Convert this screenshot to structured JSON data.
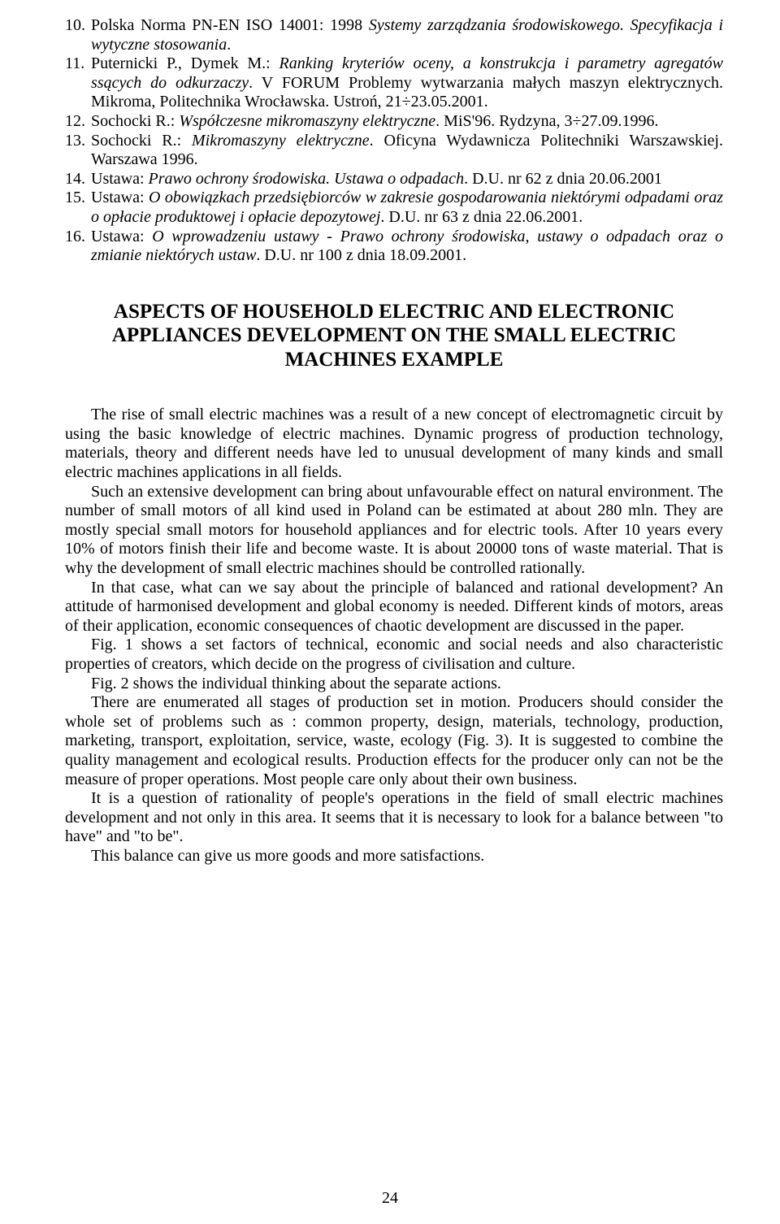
{
  "refs": [
    {
      "num": "10.",
      "html": "Polska Norma PN-EN ISO 14001: 1998 <span class='italic'>Systemy zarządzania środowiskowego. Specyfikacja i wytyczne stosowania</span>."
    },
    {
      "num": "11.",
      "html": "Puternicki P., Dymek M.: <span class='italic'>Ranking kryteriów oceny, a konstrukcja i parametry agregatów ssących do odkurzaczy</span>. V FORUM Problemy wytwarzania małych maszyn elektrycznych. Mikroma, Politechnika Wrocławska. Ustroń, 21÷23.05.2001."
    },
    {
      "num": "12.",
      "html": "Sochocki R.: <span class='italic'>Współczesne mikromaszyny elektryczne</span>. MiS'96. Rydzyna, 3÷27.09.1996."
    },
    {
      "num": "13.",
      "html": "Sochocki R.: <span class='italic'>Mikromaszyny elektryczne</span>. Oficyna Wydawnicza Politechniki Warszawskiej. Warszawa 1996."
    },
    {
      "num": "14.",
      "html": "Ustawa: <span class='italic'>Prawo ochrony środowiska. Ustawa o odpadach</span>. D.U. nr 62 z dnia 20.06.2001"
    },
    {
      "num": "15.",
      "html": "Ustawa: <span class='italic'>O obowiązkach przedsiębiorców w zakresie gospodarowania niektórymi odpadami oraz o opłacie produktowej i opłacie depozytowej</span>. D.U. nr 63 z dnia 22.06.2001."
    },
    {
      "num": "16.",
      "html": "Ustawa: <span class='italic'>O wprowadzeniu ustawy - Prawo ochrony środowiska, ustawy o odpadach oraz o zmianie niektórych ustaw</span>. D.U. nr 100 z dnia 18.09.2001."
    }
  ],
  "title": "ASPECTS OF HOUSEHOLD ELECTRIC AND ELECTRONIC APPLIANCES DEVELOPMENT ON THE SMALL ELECTRIC MACHINES EXAMPLE",
  "paragraphs": [
    "The rise of small electric machines was a result of a new concept of electromagnetic circuit by using the basic knowledge of electric machines. Dynamic progress of production technology, materials, theory and different needs have led to unusual development of many kinds and small electric machines applications in all fields.",
    "Such an extensive development can bring about unfavourable effect on natural environment. The number of small motors of all kind used in Poland can be estimated at about 280 mln. They are mostly special small motors for household appliances and for electric tools. After 10 years every 10% of motors finish their life and become waste. It is about 20000 tons of waste material. That is why the development of small electric machines should be controlled rationally.",
    "In that case, what can we say about the principle of balanced and rational development? An attitude of harmonised development and global economy is needed. Different kinds of motors, areas of their application, economic consequences of chaotic development are discussed in the paper.",
    "Fig. 1 shows a set factors of technical, economic and social needs and also characteristic properties of creators, which decide on the progress of civilisation and culture.",
    "Fig. 2 shows the individual thinking about the separate actions.",
    "There are enumerated all stages of production set in motion. Producers should consider the whole set of problems such as : common property, design, materials, technology, production, marketing, transport, exploitation, service, waste, ecology (Fig. 3). It is suggested to combine the quality management and ecological results. Production effects for the producer only can not be the measure of proper operations. Most people care only about their own business.",
    "It is a question of rationality of people's operations in the field of small electric machines development and not only in this area. It seems that it is necessary to look for a balance between \"to have\" and \"to be\".",
    "This balance can give us more goods and more satisfactions."
  ],
  "pageNumber": "24"
}
